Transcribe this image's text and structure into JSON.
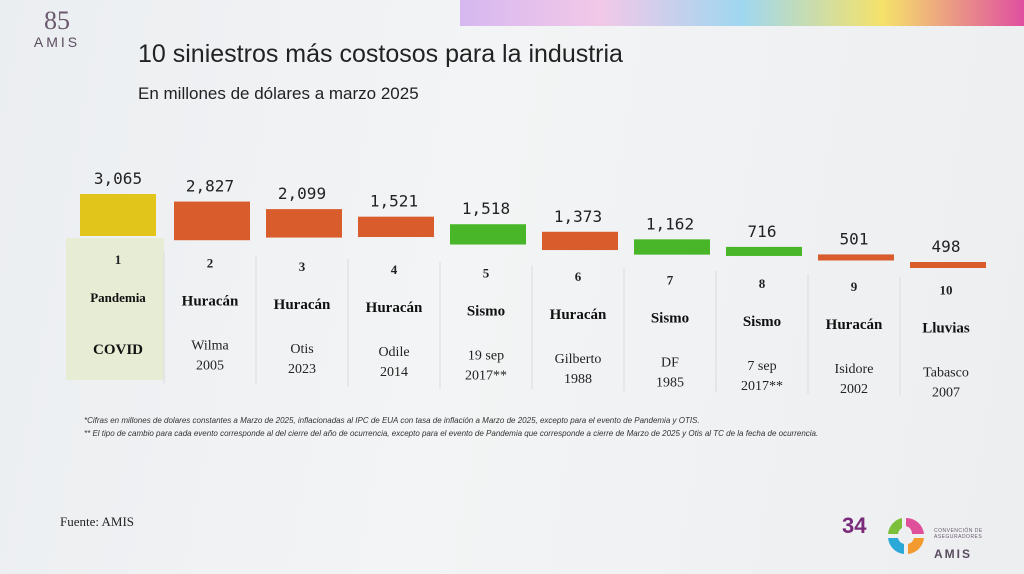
{
  "header": {
    "logo_number": "85",
    "logo_name": "AMIS",
    "title": "10 siniestros más costosos para la industria",
    "subtitle": "En millones de dólares a marzo 2025"
  },
  "chart_data": {
    "type": "bar",
    "title": "10 siniestros más costosos para la industria",
    "subtitle": "En millones de dólares a marzo 2025",
    "categories": [
      "1",
      "2",
      "3",
      "4",
      "5",
      "6",
      "7",
      "8",
      "9",
      "10"
    ],
    "values": [
      3065,
      2827,
      2099,
      1521,
      1518,
      1373,
      1162,
      716,
      501,
      498
    ],
    "value_labels": [
      "3,065",
      "2,827",
      "2,099",
      "1,521",
      "1,518",
      "1,373",
      "1,162",
      "716",
      "501",
      "498"
    ],
    "types": [
      "Pandemia",
      "Huracán",
      "Huracán",
      "Huracán",
      "Sismo",
      "Huracán",
      "Sismo",
      "Sismo",
      "Huracán",
      "Lluvias"
    ],
    "events": [
      [
        "COVID"
      ],
      [
        "Wilma",
        "2005"
      ],
      [
        "Otis",
        "2023"
      ],
      [
        "Odile",
        "2014"
      ],
      [
        "19 sep",
        "2017**"
      ],
      [
        "Gilberto",
        "1988"
      ],
      [
        "DF",
        "1985"
      ],
      [
        "7 sep",
        "2017**"
      ],
      [
        "Isidore",
        "2002"
      ],
      [
        "Tabasco",
        "2007"
      ]
    ],
    "colors": {
      "Pandemia": "#e2c51a",
      "Huracán": "#d85c2c",
      "Sismo": "#49b629",
      "Lluvias": "#d85c2c"
    },
    "highlight_column": 1,
    "highlight_color": "#e7ecd4"
  },
  "footnotes": [
    "*Cifras en millones de dolares constantes a Marzo de 2025, inflacionadas al IPC de EUA con tasa de inflación a Marzo de 2025, excepto para el evento de Pandemia y OTIS.",
    "** El tipo de cambio para cada evento corresponde al del cierre del año de ocurrencia, excepto para el evento de Pandemia que corresponde a cierre de Marzo de 2025 y Otis al TC de la fecha de ocurrencia."
  ],
  "source": "Fuente: AMIS",
  "page_number": "34",
  "footer_logo": {
    "text": "CONVENCIÓN DE ASEGURADORES",
    "name": "AMIS"
  }
}
